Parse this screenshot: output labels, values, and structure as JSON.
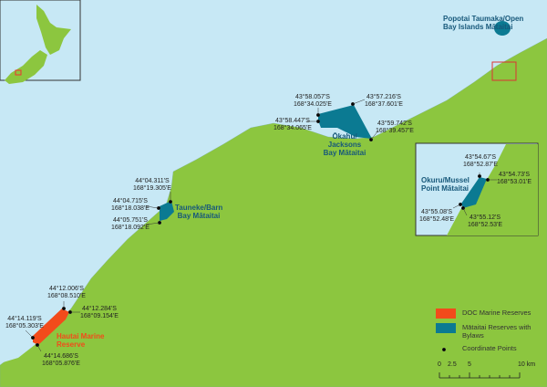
{
  "areas": {
    "popotai": "Popotai Taumaka/Open Bay Islands Mātaitai",
    "okahu": "Ōkahu/ Jacksons Bay Mātaitai",
    "okuru": "Okuru/Mussel Point Mātaitai",
    "tauneke": "Tauneke/Barn Bay Mātaitai",
    "hautai": "Hautai Marine Reserve"
  },
  "coords": {
    "ok1": [
      "43°58.057'S",
      "168°34.025'E"
    ],
    "ok2": [
      "43°57.216'S",
      "168°37.601'E"
    ],
    "ok3": [
      "43°58.447'S",
      "168°34.065'E"
    ],
    "ok4": [
      "43°59.742'S",
      "168°39.457'E"
    ],
    "ou1": [
      "43°54.67'S",
      "168°52.87'E"
    ],
    "ou2": [
      "43°54.73'S",
      "168°53.01'E"
    ],
    "ou3": [
      "43°55.08'S",
      "168°52.48'E"
    ],
    "ou4": [
      "43°55.12'S",
      "168°52.53'E"
    ],
    "ta1": [
      "44°04.311'S",
      "168°19.305'E"
    ],
    "ta2": [
      "44°04.715'S",
      "168°18.038'E"
    ],
    "ta3": [
      "44°05.751'S",
      "168°18.092'E"
    ],
    "ha1": [
      "44°12.006'S",
      "168°08.510'E"
    ],
    "ha2": [
      "44°12.284'S",
      "168°09.154'E"
    ],
    "ha3": [
      "44°14.119'S",
      "168°05.303'E"
    ],
    "ha4": [
      "44°14.686'S",
      "168°05.876'E"
    ]
  },
  "legend": {
    "doc": "DOC Marine Reserves",
    "mataitai": "Mātaitai Reserves with Bylaws",
    "points": "Coordinate Points",
    "colors": {
      "doc": "#f24b1b",
      "mataitai": "#0b7a92",
      "land": "#8cc63f",
      "sea": "#c7e8f5"
    }
  },
  "scale": {
    "ticks": [
      "0",
      "2.5",
      "5",
      "10 km"
    ]
  }
}
